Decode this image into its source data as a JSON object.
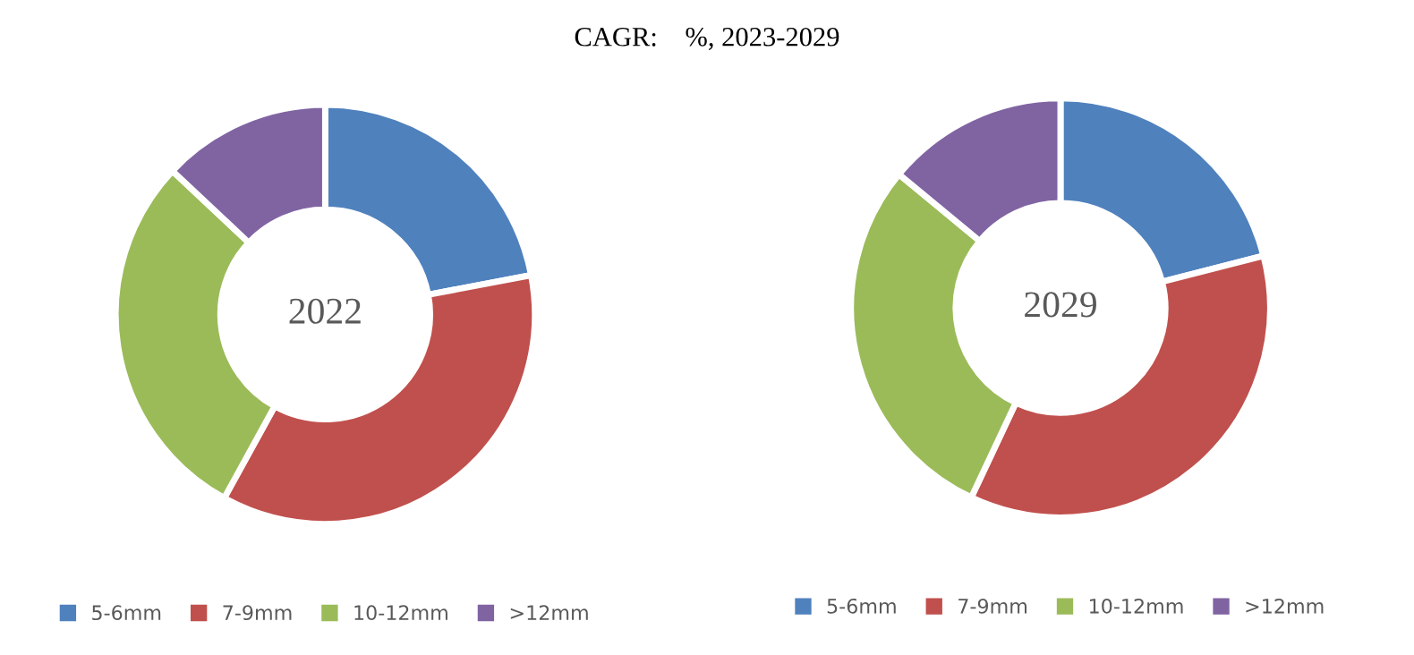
{
  "chart_data": [
    {
      "type": "donut",
      "title": "CAGR:    %, 2023-2029",
      "annotations": [
        "2022"
      ],
      "categories": [
        "5-6mm",
        "7-9mm",
        "10-12mm",
        ">12mm"
      ],
      "values": [
        22,
        36,
        29,
        13
      ],
      "colors": [
        "#4f81bd",
        "#c0504d",
        "#9bbb59",
        "#8064a2"
      ],
      "legend": "bottom"
    },
    {
      "type": "donut",
      "annotations": [
        "2029"
      ],
      "categories": [
        "5-6mm",
        "7-9mm",
        "10-12mm",
        ">12mm"
      ],
      "values": [
        21,
        36,
        29,
        14
      ],
      "colors": [
        "#4f81bd",
        "#c0504d",
        "#9bbb59",
        "#8064a2"
      ],
      "legend": "bottom"
    }
  ]
}
